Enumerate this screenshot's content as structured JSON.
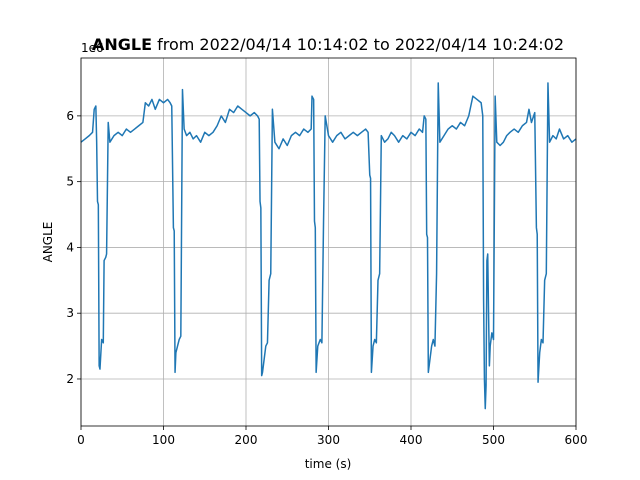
{
  "chart_data": {
    "type": "line",
    "title_bold": "ANGLE",
    "title": "from 2022/04/14 10:14:02 to 2022/04/14 10:24:02",
    "x_label": "time (s)",
    "y_label": "ANGLE",
    "y_offset_text": "1e6",
    "xlim": [
      0,
      600
    ],
    "xticks": [
      0,
      100,
      200,
      300,
      400,
      500,
      600
    ],
    "ylim": [
      1.285,
      6.88
    ],
    "yticks": [
      2,
      3,
      4,
      5,
      6
    ],
    "grid": true,
    "series": [
      {
        "name": "ANGLE",
        "color": "#1f77b4",
        "x": [
          0,
          5,
          10,
          14,
          16,
          18,
          19,
          20,
          21,
          22,
          23,
          25,
          27,
          28,
          30,
          31,
          33,
          35,
          40,
          45,
          50,
          55,
          60,
          65,
          70,
          75,
          78,
          82,
          86,
          90,
          95,
          100,
          105,
          108,
          110,
          112,
          113,
          114,
          115,
          117,
          119,
          121,
          123,
          125,
          128,
          132,
          136,
          140,
          145,
          150,
          155,
          160,
          165,
          170,
          175,
          180,
          185,
          190,
          195,
          200,
          205,
          210,
          214,
          216,
          217,
          218,
          219,
          220,
          222,
          224,
          226,
          228,
          230,
          232,
          235,
          240,
          245,
          250,
          255,
          260,
          265,
          270,
          275,
          279,
          280,
          282,
          283,
          284,
          285,
          287,
          290,
          292,
          294,
          296,
          300,
          305,
          310,
          315,
          320,
          325,
          330,
          335,
          340,
          345,
          348,
          350,
          351,
          352,
          354,
          356,
          358,
          360,
          362,
          364,
          368,
          372,
          376,
          380,
          385,
          390,
          395,
          400,
          405,
          410,
          414,
          416,
          418,
          419,
          420,
          421,
          423,
          425,
          427,
          429,
          431,
          433,
          435,
          440,
          445,
          450,
          455,
          460,
          465,
          470,
          475,
          480,
          485,
          487,
          488,
          489,
          490,
          491,
          492,
          493,
          494,
          495,
          496,
          498,
          500,
          502,
          504,
          508,
          512,
          516,
          520,
          525,
          530,
          535,
          540,
          543,
          546,
          550,
          552,
          553,
          554,
          556,
          558,
          560,
          562,
          564,
          566,
          568,
          572,
          576,
          580,
          585,
          590,
          595,
          600
        ],
        "values": [
          5.6,
          5.65,
          5.7,
          5.75,
          6.1,
          6.15,
          5.6,
          4.7,
          4.65,
          2.2,
          2.15,
          2.6,
          2.55,
          3.8,
          3.85,
          3.9,
          5.9,
          5.6,
          5.7,
          5.75,
          5.7,
          5.8,
          5.75,
          5.8,
          5.85,
          5.9,
          6.2,
          6.15,
          6.25,
          6.1,
          6.25,
          6.2,
          6.25,
          6.2,
          6.15,
          4.3,
          4.25,
          2.1,
          2.4,
          2.5,
          2.6,
          2.65,
          6.4,
          5.8,
          5.7,
          5.75,
          5.65,
          5.7,
          5.6,
          5.75,
          5.7,
          5.75,
          5.85,
          6.0,
          5.9,
          6.1,
          6.05,
          6.15,
          6.1,
          6.05,
          6.0,
          6.05,
          6.0,
          5.95,
          4.7,
          4.6,
          2.05,
          2.1,
          2.3,
          2.5,
          2.55,
          3.5,
          3.6,
          6.1,
          5.6,
          5.5,
          5.65,
          5.55,
          5.7,
          5.75,
          5.7,
          5.8,
          5.75,
          5.8,
          6.3,
          6.25,
          4.4,
          4.3,
          2.1,
          2.5,
          2.6,
          2.55,
          4.4,
          6.0,
          5.7,
          5.6,
          5.7,
          5.75,
          5.65,
          5.7,
          5.75,
          5.7,
          5.75,
          5.8,
          5.75,
          5.1,
          5.05,
          2.1,
          2.5,
          2.6,
          2.55,
          3.5,
          3.6,
          5.7,
          5.6,
          5.65,
          5.75,
          5.7,
          5.6,
          5.7,
          5.65,
          5.75,
          5.7,
          5.8,
          5.75,
          6.0,
          5.95,
          4.2,
          4.15,
          2.1,
          2.3,
          2.5,
          2.6,
          2.5,
          3.6,
          6.5,
          5.6,
          5.7,
          5.8,
          5.85,
          5.8,
          5.9,
          5.85,
          6.0,
          6.3,
          6.25,
          6.2,
          6.0,
          3.2,
          2.0,
          1.55,
          1.9,
          3.8,
          3.9,
          3.0,
          2.2,
          2.5,
          2.7,
          2.6,
          6.3,
          5.6,
          5.55,
          5.6,
          5.7,
          5.75,
          5.8,
          5.75,
          5.85,
          5.9,
          6.1,
          5.9,
          6.05,
          4.3,
          4.2,
          1.95,
          2.4,
          2.6,
          2.55,
          3.5,
          3.6,
          6.5,
          5.6,
          5.7,
          5.65,
          5.8,
          5.65,
          5.7,
          5.6,
          5.65
        ]
      }
    ]
  }
}
